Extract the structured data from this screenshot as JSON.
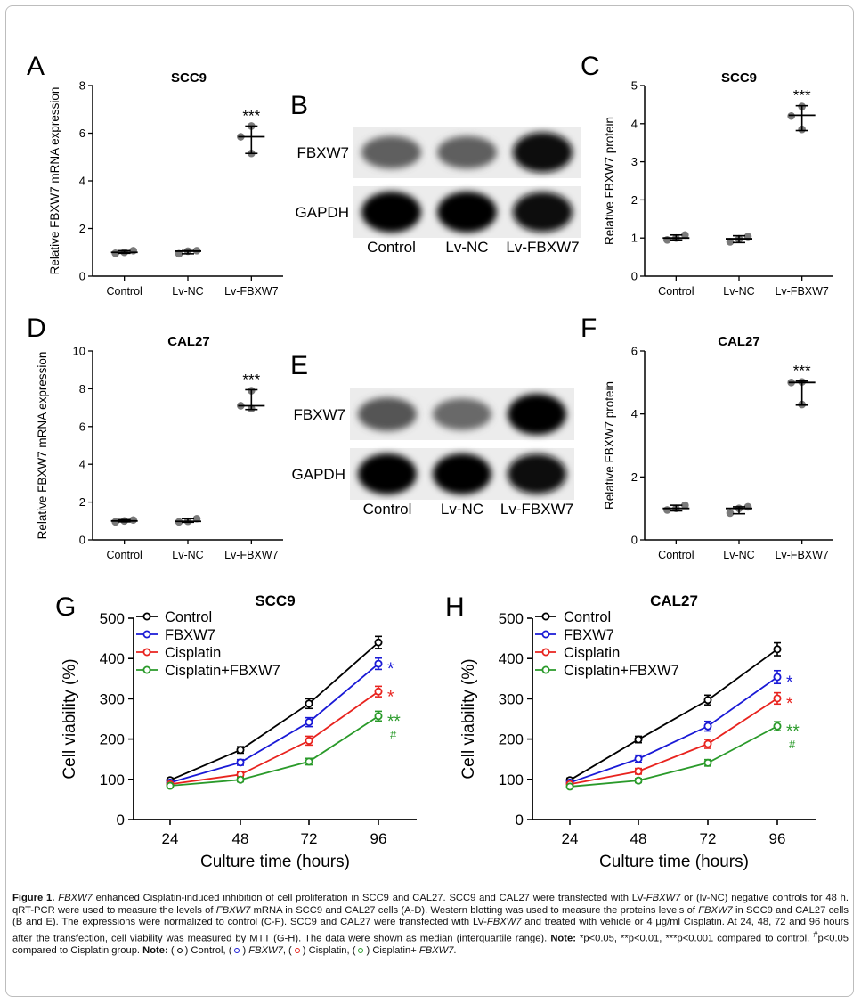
{
  "panel_letters": [
    "A",
    "B",
    "C",
    "D",
    "E",
    "F",
    "G",
    "H"
  ],
  "chart_data": [
    {
      "panel": "A",
      "type": "scatter",
      "title": "SCC9",
      "ylabel": "Relative FBXW7 mRNA expression",
      "ylim": [
        0,
        8
      ],
      "yticks": [
        0,
        2,
        4,
        6,
        8
      ],
      "categories": [
        "Control",
        "Lv-NC",
        "Lv-FBXW7"
      ],
      "points": [
        [
          0.96,
          1.0,
          1.07
        ],
        [
          0.94,
          1.05,
          1.07
        ],
        [
          5.15,
          5.85,
          6.3
        ]
      ],
      "median": [
        1.0,
        1.05,
        5.85
      ],
      "error_low": [
        0.96,
        0.94,
        5.15
      ],
      "error_high": [
        1.07,
        1.07,
        6.3
      ],
      "significance": [
        "",
        "",
        "***"
      ]
    },
    {
      "panel": "C",
      "type": "scatter",
      "title": "SCC9",
      "ylabel": "Relative FBXW7 protein",
      "ylim": [
        0,
        5
      ],
      "yticks": [
        0,
        1,
        2,
        3,
        4,
        5
      ],
      "categories": [
        "Control",
        "Lv-NC",
        "Lv-FBXW7"
      ],
      "points": [
        [
          0.95,
          1.0,
          1.08
        ],
        [
          0.9,
          0.98,
          1.04
        ],
        [
          3.85,
          4.2,
          4.45
        ]
      ],
      "median": [
        1.0,
        0.98,
        4.22
      ],
      "error_low": [
        0.95,
        0.88,
        3.82
      ],
      "error_high": [
        1.08,
        1.06,
        4.47
      ],
      "significance": [
        "",
        "",
        "***"
      ]
    },
    {
      "panel": "D",
      "type": "scatter",
      "title": "CAL27",
      "ylabel": "Relative FBXW7 mRNA expression",
      "ylim": [
        0,
        10
      ],
      "yticks": [
        0,
        2,
        4,
        6,
        8,
        10
      ],
      "categories": [
        "Control",
        "Lv-NC",
        "Lv-FBXW7"
      ],
      "points": [
        [
          0.95,
          1.0,
          1.05
        ],
        [
          0.95,
          0.98,
          1.12
        ],
        [
          6.95,
          7.1,
          7.9
        ]
      ],
      "median": [
        1.0,
        0.98,
        7.1
      ],
      "error_low": [
        0.95,
        0.93,
        6.9
      ],
      "error_high": [
        1.07,
        1.12,
        7.95
      ],
      "significance": [
        "",
        "",
        "***"
      ]
    },
    {
      "panel": "F",
      "type": "scatter",
      "title": "CAL27",
      "ylabel": "Relative FBXW7 protein",
      "ylim": [
        0,
        6
      ],
      "yticks": [
        0,
        2,
        4,
        6
      ],
      "categories": [
        "Control",
        "Lv-NC",
        "Lv-FBXW7"
      ],
      "points": [
        [
          0.95,
          1.0,
          1.1
        ],
        [
          0.85,
          1.0,
          1.05
        ],
        [
          4.3,
          5.0,
          5.02
        ]
      ],
      "median": [
        1.0,
        1.0,
        5.0
      ],
      "error_low": [
        0.92,
        0.83,
        4.28
      ],
      "error_high": [
        1.1,
        1.05,
        5.05
      ],
      "significance": [
        "",
        "",
        "***"
      ]
    },
    {
      "panel": "G",
      "type": "line",
      "title": "SCC9",
      "xlabel": "Culture time (hours)",
      "ylabel": "Cell viability (%)",
      "x": [
        24,
        48,
        72,
        96
      ],
      "ylim": [
        0,
        500
      ],
      "yticks": [
        0,
        100,
        200,
        300,
        400,
        500
      ],
      "series": [
        {
          "name": "Control",
          "color": "#000000",
          "values": [
            98,
            173,
            288,
            440
          ],
          "err": [
            5,
            8,
            12,
            15
          ],
          "mark": ""
        },
        {
          "name": "FBXW7",
          "color": "#1a1ad6",
          "values": [
            92,
            142,
            242,
            387
          ],
          "err": [
            4,
            7,
            11,
            14
          ],
          "mark": "*"
        },
        {
          "name": "Cisplatin",
          "color": "#e8231e",
          "values": [
            88,
            112,
            196,
            318
          ],
          "err": [
            4,
            6,
            11,
            13
          ],
          "mark": "*"
        },
        {
          "name": "Cisplatin+FBXW7",
          "color": "#2a9a2a",
          "values": [
            84,
            99,
            144,
            257
          ],
          "err": [
            3,
            5,
            8,
            12
          ],
          "mark": "**",
          "mark2": "#"
        }
      ]
    },
    {
      "panel": "H",
      "type": "line",
      "title": "CAL27",
      "xlabel": "Culture time (hours)",
      "ylabel": "Cell viability (%)",
      "x": [
        24,
        48,
        72,
        96
      ],
      "ylim": [
        0,
        500
      ],
      "yticks": [
        0,
        100,
        200,
        300,
        400,
        500
      ],
      "series": [
        {
          "name": "Control",
          "color": "#000000",
          "values": [
            98,
            199,
            297,
            423
          ],
          "err": [
            5,
            8,
            12,
            16
          ],
          "mark": ""
        },
        {
          "name": "FBXW7",
          "color": "#1a1ad6",
          "values": [
            92,
            151,
            232,
            354
          ],
          "err": [
            4,
            9,
            12,
            16
          ],
          "mark": "*"
        },
        {
          "name": "Cisplatin",
          "color": "#e8231e",
          "values": [
            88,
            120,
            188,
            301
          ],
          "err": [
            4,
            7,
            11,
            14
          ],
          "mark": "*"
        },
        {
          "name": "Cisplatin+FBXW7",
          "color": "#2a9a2a",
          "values": [
            82,
            97,
            141,
            232
          ],
          "err": [
            3,
            5,
            8,
            11
          ],
          "mark": "**",
          "mark2": "#"
        }
      ]
    }
  ],
  "blots": [
    {
      "panel": "B",
      "row_labels": [
        "FBXW7",
        "GAPDH"
      ],
      "lane_labels": [
        "Control",
        "Lv-NC",
        "Lv-FBXW7"
      ],
      "band_intensity": [
        [
          0.55,
          0.55,
          0.95
        ],
        [
          1.0,
          1.0,
          0.95
        ]
      ]
    },
    {
      "panel": "E",
      "row_labels": [
        "FBXW7",
        "GAPDH"
      ],
      "lane_labels": [
        "Control",
        "Lv-NC",
        "Lv-FBXW7"
      ],
      "band_intensity": [
        [
          0.6,
          0.5,
          1.0
        ],
        [
          1.0,
          1.0,
          0.95
        ]
      ]
    }
  ],
  "caption": {
    "fig": "Figure 1.",
    "g1": "FBXW7",
    "t1": " enhanced Cisplatin-induced inhibition of cell proliferation in SCC9 and CAL27. SCC9 and CAL27 were transfected with LV-",
    "g2": "FBXW7",
    "t2": " or (lv-NC) negative controls for 48 h. qRT-PCR were used to measure the levels of ",
    "g3": "FBXW7",
    "t3": " mRNA in SCC9 and CAL27 cells (A-D). Western blotting was used to measure the proteins levels of ",
    "g4": "FBXW7",
    "t4": " in SCC9 and CAL27 cells (B and E). The expressions were normalized to control (C-F). SCC9 and CAL27 were transfected with LV-",
    "g5": "FBXW7",
    "t5": " and treated with vehicle or 4 μg/ml Cisplatin. At 24, 48, 72 and 96 hours after the transfection, cell viability was measured by MTT (G-H). The data were shown as median (interquartile range). ",
    "note_label": "Note:",
    "t6": " *p<0.05, **p<0.01, ***p<0.001 compared to control. ",
    "hash": "#",
    "t7": "p<0.05 compared to Cisplatin group. ",
    "note_label2": "Note:",
    "k_control": " Control, ",
    "k_fbxw7": "FBXW7",
    "k_cis": " Cisplatin, ",
    "k_combo": "Cisplatin+ ",
    "k_fbxw7b": "FBXW7",
    "end": "."
  }
}
